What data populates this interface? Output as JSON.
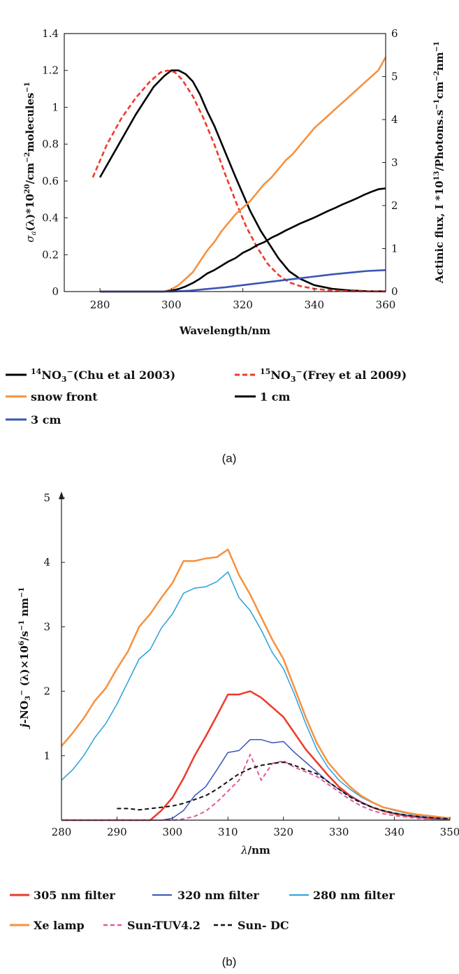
{
  "chart_data": [
    {
      "type": "line",
      "caption": "(a)",
      "xlabel": "Wavelength/nm",
      "ylabel_left": "σa(λ)*10^20/cm^-2molecules^-1",
      "ylabel_right": "Actinic flux, I *10^13/Photons.s^-1cm^-2nm^-1",
      "xlim": [
        270,
        360
      ],
      "ylim_left": [
        0,
        1.4
      ],
      "ylim_right": [
        0,
        6
      ],
      "xticks": [
        "280",
        "300",
        "320",
        "340",
        "360"
      ],
      "yticks_left": [
        "0",
        "0.2",
        "0.4",
        "0.6",
        "0.8",
        "1",
        "1.2",
        "1.4"
      ],
      "yticks_right": [
        "0",
        "1",
        "2",
        "3",
        "4",
        "5",
        "6"
      ],
      "grid": false,
      "legend_position": "below",
      "series": [
        {
          "name": "14NO3−(Chu et al 2003)",
          "label_super": "14",
          "label_main": "NO",
          "label_sub": "3",
          "label_charge": "−",
          "label_rest": "(Chu et al 2003)",
          "axis": "left",
          "color": "#000000",
          "dash": "solid",
          "x": [
            280,
            285,
            290,
            295,
            298,
            300,
            302,
            304,
            306,
            308,
            310,
            312,
            315,
            318,
            320,
            322,
            325,
            328,
            330,
            333,
            336,
            340,
            345,
            350,
            355,
            360
          ],
          "y": [
            0.62,
            0.79,
            0.96,
            1.11,
            1.17,
            1.2,
            1.2,
            1.18,
            1.14,
            1.07,
            0.98,
            0.9,
            0.76,
            0.62,
            0.53,
            0.44,
            0.33,
            0.24,
            0.18,
            0.11,
            0.07,
            0.035,
            0.015,
            0.006,
            0.002,
            0.001
          ]
        },
        {
          "name": "15NO3−(Frey et al 2009)",
          "label_super": "15",
          "label_main": "NO",
          "label_sub": "3",
          "label_charge": "−",
          "label_rest": "(Frey et al 2009)",
          "axis": "left",
          "color": "#ee3a2a",
          "dash": "dashed",
          "x": [
            278,
            282,
            286,
            290,
            294,
            297,
            299,
            301,
            303,
            306,
            309,
            312,
            315,
            318,
            321,
            324,
            327,
            330,
            333,
            336,
            340,
            345,
            350,
            355,
            360
          ],
          "y": [
            0.62,
            0.8,
            0.94,
            1.05,
            1.14,
            1.19,
            1.2,
            1.19,
            1.15,
            1.06,
            0.94,
            0.8,
            0.64,
            0.49,
            0.35,
            0.24,
            0.15,
            0.09,
            0.05,
            0.03,
            0.015,
            0.006,
            0.002,
            0.001,
            0.0
          ]
        },
        {
          "name": "snow front",
          "axis": "right",
          "color": "#f6913f",
          "dash": "solid",
          "x": [
            280,
            290,
            298,
            300,
            302,
            304,
            306,
            308,
            310,
            312,
            314,
            316,
            318,
            320,
            322,
            324,
            326,
            328,
            330,
            332,
            334,
            336,
            338,
            340,
            342,
            344,
            346,
            348,
            350,
            352,
            354,
            356,
            358,
            360
          ],
          "y": [
            0,
            0,
            0,
            0.05,
            0.15,
            0.3,
            0.45,
            0.7,
            0.95,
            1.15,
            1.4,
            1.6,
            1.8,
            1.95,
            2.1,
            2.3,
            2.5,
            2.65,
            2.85,
            3.05,
            3.2,
            3.4,
            3.6,
            3.8,
            3.95,
            4.1,
            4.25,
            4.4,
            4.55,
            4.7,
            4.85,
            5.0,
            5.15,
            5.45
          ]
        },
        {
          "name": "1 cm",
          "axis": "right",
          "color": "#000000",
          "dash": "solid",
          "x": [
            280,
            290,
            298,
            300,
            302,
            304,
            306,
            308,
            310,
            312,
            314,
            316,
            318,
            320,
            322,
            324,
            326,
            328,
            330,
            332,
            334,
            336,
            338,
            340,
            342,
            344,
            346,
            348,
            350,
            352,
            354,
            356,
            358,
            360
          ],
          "y": [
            0,
            0,
            0,
            0.02,
            0.06,
            0.12,
            0.2,
            0.3,
            0.42,
            0.5,
            0.6,
            0.7,
            0.78,
            0.9,
            0.98,
            1.08,
            1.15,
            1.25,
            1.33,
            1.42,
            1.5,
            1.58,
            1.65,
            1.72,
            1.8,
            1.88,
            1.95,
            2.03,
            2.1,
            2.17,
            2.25,
            2.32,
            2.38,
            2.4
          ]
        },
        {
          "name": "3 cm",
          "axis": "right",
          "color": "#3b55b5",
          "dash": "solid",
          "x": [
            280,
            300,
            305,
            310,
            315,
            320,
            325,
            330,
            335,
            340,
            345,
            350,
            355,
            360
          ],
          "y": [
            0,
            0,
            0.02,
            0.06,
            0.1,
            0.15,
            0.2,
            0.25,
            0.3,
            0.35,
            0.4,
            0.44,
            0.48,
            0.5
          ]
        }
      ]
    },
    {
      "type": "line",
      "caption": "(b)",
      "xlabel": "λ/nm",
      "ylabel": "j-NO3− (λ)×10^6/s^-1 nm^-1",
      "xlim": [
        280,
        350
      ],
      "ylim": [
        0,
        5
      ],
      "xticks": [
        "280",
        "290",
        "300",
        "310",
        "320",
        "330",
        "340",
        "350"
      ],
      "yticks": [
        "1",
        "2",
        "3",
        "4",
        "5"
      ],
      "grid": false,
      "legend_position": "below",
      "series": [
        {
          "name": "305 nm filter",
          "color": "#ee3a2a",
          "dash": "solid",
          "width": 2.5,
          "x": [
            280,
            296,
            298,
            300,
            302,
            304,
            306,
            308,
            310,
            312,
            314,
            316,
            318,
            320,
            322,
            324,
            326,
            328,
            330,
            332,
            334,
            336,
            338,
            340,
            342,
            344,
            346,
            348,
            350
          ],
          "y": [
            0,
            0,
            0.15,
            0.35,
            0.65,
            1.0,
            1.3,
            1.62,
            1.95,
            1.95,
            2.0,
            1.9,
            1.75,
            1.6,
            1.35,
            1.1,
            0.9,
            0.7,
            0.52,
            0.38,
            0.28,
            0.2,
            0.14,
            0.1,
            0.07,
            0.05,
            0.03,
            0.02,
            0.01
          ]
        },
        {
          "name": "320 nm filter",
          "color": "#3b55b5",
          "dash": "solid",
          "width": 1.5,
          "x": [
            280,
            298,
            300,
            302,
            304,
            306,
            308,
            310,
            312,
            314,
            316,
            318,
            320,
            322,
            324,
            326,
            328,
            330,
            332,
            334,
            336,
            338,
            340,
            342,
            344,
            346,
            348,
            350
          ],
          "y": [
            0,
            0,
            0.03,
            0.15,
            0.38,
            0.52,
            0.78,
            1.05,
            1.08,
            1.25,
            1.25,
            1.2,
            1.22,
            1.05,
            0.9,
            0.75,
            0.6,
            0.48,
            0.37,
            0.28,
            0.2,
            0.15,
            0.11,
            0.08,
            0.06,
            0.04,
            0.03,
            0.02
          ]
        },
        {
          "name": "280 nm filter",
          "color": "#2aa0dc",
          "dash": "solid",
          "width": 1.5,
          "x": [
            280,
            282,
            284,
            286,
            288,
            290,
            292,
            294,
            296,
            298,
            300,
            302,
            304,
            306,
            308,
            310,
            312,
            314,
            316,
            318,
            320,
            322,
            324,
            326,
            328,
            330,
            332,
            334,
            336,
            338,
            340,
            342,
            344,
            346,
            348,
            350
          ],
          "y": [
            0.62,
            0.78,
            1.0,
            1.28,
            1.5,
            1.8,
            2.15,
            2.5,
            2.65,
            2.98,
            3.2,
            3.52,
            3.6,
            3.62,
            3.7,
            3.85,
            3.45,
            3.25,
            2.95,
            2.6,
            2.35,
            1.95,
            1.5,
            1.1,
            0.82,
            0.62,
            0.48,
            0.36,
            0.27,
            0.2,
            0.15,
            0.11,
            0.08,
            0.06,
            0.04,
            0.03
          ]
        },
        {
          "name": "Xe lamp",
          "color": "#f6913f",
          "dash": "solid",
          "width": 2.5,
          "x": [
            280,
            282,
            284,
            286,
            288,
            290,
            292,
            294,
            296,
            298,
            300,
            302,
            304,
            306,
            308,
            310,
            312,
            314,
            316,
            318,
            320,
            322,
            324,
            326,
            328,
            330,
            332,
            334,
            336,
            338,
            340,
            342,
            344,
            346,
            348,
            350
          ],
          "y": [
            1.15,
            1.35,
            1.58,
            1.85,
            2.05,
            2.35,
            2.62,
            3.0,
            3.2,
            3.45,
            3.68,
            4.02,
            4.02,
            4.06,
            4.08,
            4.2,
            3.8,
            3.5,
            3.15,
            2.8,
            2.5,
            2.05,
            1.6,
            1.2,
            0.9,
            0.7,
            0.52,
            0.38,
            0.28,
            0.2,
            0.16,
            0.12,
            0.09,
            0.07,
            0.05,
            0.03
          ]
        },
        {
          "name": "Sun-TUV4.2",
          "color": "#e05aa0",
          "dash": "dashed",
          "width": 2,
          "x": [
            280,
            300,
            302,
            304,
            306,
            308,
            310,
            312,
            314,
            316,
            318,
            320,
            322,
            324,
            326,
            328,
            330,
            332,
            334,
            336,
            338,
            340,
            342,
            344,
            346,
            348,
            350
          ],
          "y": [
            0,
            0,
            0.02,
            0.06,
            0.14,
            0.28,
            0.45,
            0.62,
            1.02,
            0.62,
            0.88,
            0.92,
            0.82,
            0.75,
            0.68,
            0.56,
            0.44,
            0.32,
            0.22,
            0.15,
            0.1,
            0.07,
            0.05,
            0.03,
            0.02,
            0.01,
            0.01
          ]
        },
        {
          "name": "Sun- DC",
          "color": "#111111",
          "dash": "dashed",
          "width": 2,
          "x": [
            290,
            292,
            294,
            296,
            298,
            300,
            302,
            304,
            306,
            308,
            310,
            312,
            314,
            316,
            318,
            320,
            322,
            324,
            326,
            328,
            330,
            332,
            334,
            336,
            338,
            340,
            342,
            344,
            346,
            348,
            350
          ],
          "y": [
            0.18,
            0.18,
            0.16,
            0.18,
            0.2,
            0.22,
            0.26,
            0.32,
            0.38,
            0.48,
            0.6,
            0.72,
            0.8,
            0.85,
            0.88,
            0.9,
            0.85,
            0.78,
            0.72,
            0.6,
            0.48,
            0.36,
            0.27,
            0.2,
            0.15,
            0.11,
            0.08,
            0.06,
            0.04,
            0.03,
            0.02
          ]
        }
      ]
    }
  ]
}
